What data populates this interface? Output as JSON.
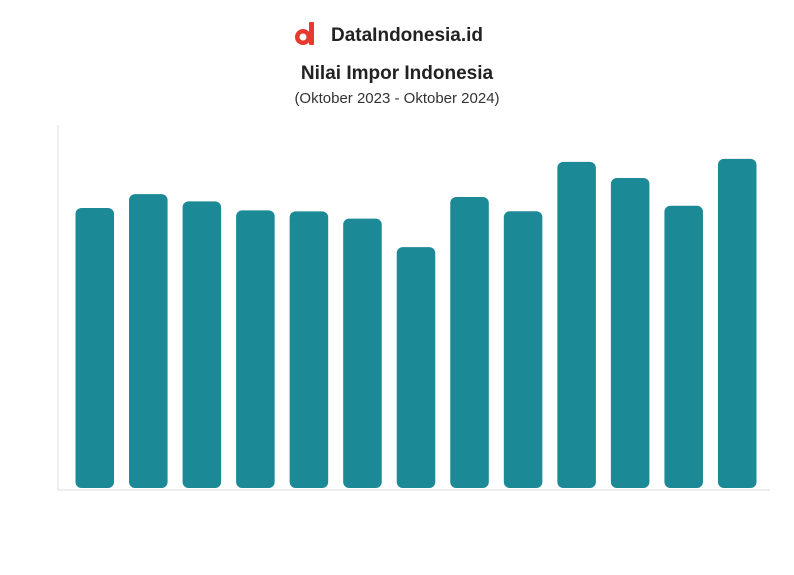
{
  "brand": "DataIndonesia.id",
  "chart_data": {
    "type": "bar",
    "title": "Nilai Impor Indonesia",
    "subtitle": "(Oktober 2023 - Oktober 2024)",
    "categories": [
      null,
      null,
      null,
      null,
      null,
      null,
      null,
      null,
      null,
      null,
      null,
      null,
      null
    ],
    "values": [
      18.67,
      19.59,
      19.11,
      18.51,
      18.44,
      17.96,
      16.06,
      19.4,
      18.45,
      21.74,
      20.67,
      18.82,
      21.94
    ],
    "color": "#1b8a96",
    "ylim": [
      0,
      24
    ]
  }
}
